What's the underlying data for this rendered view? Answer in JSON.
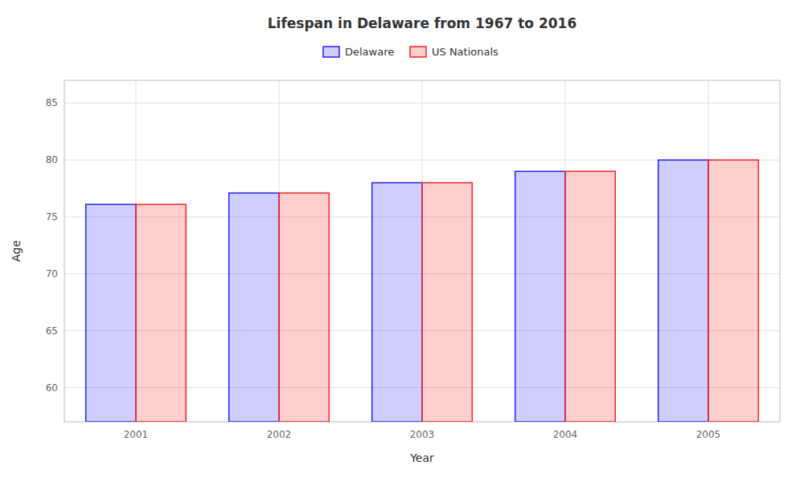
{
  "chart_data": {
    "type": "bar",
    "title": "Lifespan in Delaware from 1967 to 2016",
    "x_label": "Year",
    "y_label": "Age",
    "categories": [
      "2001",
      "2002",
      "2003",
      "2004",
      "2005"
    ],
    "series": [
      {
        "name": "Delaware",
        "color": "#2222ff",
        "values": [
          76.1,
          77.1,
          78.0,
          79.0,
          80.0
        ]
      },
      {
        "name": "US Nationals",
        "color": "#ff2222",
        "values": [
          76.1,
          77.1,
          78.0,
          79.0,
          80.0
        ]
      }
    ],
    "ylim": [
      57,
      87
    ],
    "yticks": [
      60,
      65,
      70,
      75,
      80,
      85
    ],
    "grid": true,
    "legend": "top"
  }
}
